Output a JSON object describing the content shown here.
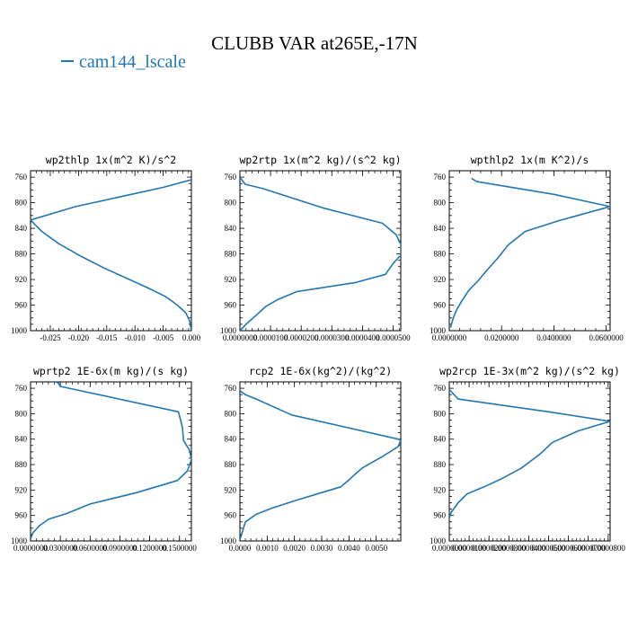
{
  "title": "CLUBB VAR at265E,-17N",
  "legend": {
    "label": "cam144_lscale",
    "color": "#1f77b4"
  },
  "line_color": "#1f77b4",
  "chart_data": [
    {
      "type": "line",
      "title": "wp2thlp  1x(m^2 K)/s^2",
      "xlim": [
        -0.0285,
        0.0
      ],
      "ylim": [
        1000,
        750
      ],
      "xticks": [
        "-0.025",
        "-0.020",
        "-0.015",
        "-0.010",
        "-0.005",
        "0.000"
      ],
      "xtick_values": [
        -0.025,
        -0.02,
        -0.015,
        -0.01,
        -0.005,
        0.0
      ],
      "yticks": [
        "760",
        "800",
        "840",
        "880",
        "920",
        "960",
        "1000"
      ],
      "ytick_values": [
        760,
        800,
        840,
        880,
        920,
        960,
        1000
      ],
      "x": [
        0.0,
        -0.005,
        -0.0205,
        -0.0285,
        -0.0265,
        -0.0235,
        -0.0195,
        -0.0155,
        -0.011,
        -0.0075,
        -0.0045,
        -0.0025,
        -0.001,
        -0.0003,
        0.0
      ],
      "y": [
        764,
        776,
        806,
        827,
        845,
        864,
        884,
        902,
        920,
        934,
        947,
        960,
        972,
        985,
        1000
      ]
    },
    {
      "type": "line",
      "title": "wp2rtp  1x(m^2 kg)/(s^2 kg)",
      "xlim": [
        0.0,
        5.25e-05
      ],
      "ylim": [
        1000,
        750
      ],
      "xticks": [
        "0.0000000",
        "0.0000100",
        "0.0000200",
        "0.0000300",
        "0.0000400",
        "0.0000500"
      ],
      "xtick_values": [
        0.0,
        1e-05,
        2e-05,
        3e-05,
        4e-05,
        5e-05
      ],
      "yticks": [
        "760",
        "800",
        "840",
        "880",
        "920",
        "960",
        "1000"
      ],
      "ytick_values": [
        760,
        800,
        840,
        880,
        920,
        960,
        1000
      ],
      "x": [
        3e-07,
        1.7e-06,
        7.5e-06,
        2.7e-05,
        4.65e-05,
        5.1e-05,
        5.25e-05,
        5.25e-05,
        5e-05,
        4.75e-05,
        3.75e-05,
        1.85e-05,
        1.25e-05,
        8.5e-06,
        5.5e-06,
        2e-06,
        0.0
      ],
      "y": [
        762,
        771,
        778,
        808,
        832,
        850,
        865,
        882,
        895,
        912,
        925,
        939,
        951,
        962,
        975,
        990,
        1000
      ]
    },
    {
      "type": "line",
      "title": "wpthlp2  1x(m K^2)/s",
      "xlim": [
        0.0,
        0.0615
      ],
      "ylim": [
        1000,
        750
      ],
      "xticks": [
        "0.0000000",
        "0.0200000",
        "0.0400000",
        "0.0600000"
      ],
      "xtick_values": [
        0.0,
        0.02,
        0.04,
        0.06
      ],
      "yticks": [
        "760",
        "800",
        "840",
        "880",
        "920",
        "960",
        "1000"
      ],
      "ytick_values": [
        760,
        800,
        840,
        880,
        920,
        960,
        1000
      ],
      "x": [
        0.0085,
        0.0105,
        0.04,
        0.0615,
        0.042,
        0.029,
        0.0225,
        0.0185,
        0.0145,
        0.011,
        0.0075,
        0.005,
        0.003,
        0.0015,
        0.0005
      ],
      "y": [
        762,
        767,
        787,
        806,
        828,
        845,
        866,
        887,
        905,
        922,
        937,
        952,
        966,
        980,
        995
      ]
    },
    {
      "type": "line",
      "title": "wprtp2  1E-6x(m kg)/(s kg)",
      "xlim": [
        0.0,
        0.162
      ],
      "ylim": [
        1000,
        750
      ],
      "xticks": [
        "0.0000000",
        "0.0300000",
        "0.0600000",
        "0.0900000",
        "0.1200000",
        "0.1500000"
      ],
      "xtick_values": [
        0.0,
        0.03,
        0.06,
        0.09,
        0.12,
        0.15
      ],
      "yticks": [
        "760",
        "800",
        "840",
        "880",
        "920",
        "960",
        "1000"
      ],
      "ytick_values": [
        760,
        800,
        840,
        880,
        920,
        960,
        1000
      ],
      "x": [
        0.022,
        0.028,
        0.03,
        0.149,
        0.153,
        0.154,
        0.16,
        0.162,
        0.158,
        0.148,
        0.107,
        0.06,
        0.036,
        0.018,
        0.009,
        0.002,
        0.0
      ],
      "y": [
        747,
        752,
        757,
        797,
        822,
        842,
        857,
        872,
        890,
        905,
        924,
        942,
        957,
        966,
        976,
        988,
        997
      ]
    },
    {
      "type": "line",
      "title": "rcp2  1E-6x(kg^2)/(kg^2)",
      "xlim": [
        0.0,
        0.0059
      ],
      "ylim": [
        1000,
        750
      ],
      "xticks": [
        "0.0000",
        "0.0010",
        "0.0020",
        "0.0030",
        "0.0040",
        "0.0050"
      ],
      "xtick_values": [
        0.0,
        0.001,
        0.002,
        0.003,
        0.004,
        0.005
      ],
      "yticks": [
        "760",
        "800",
        "840",
        "880",
        "920",
        "960",
        "1000"
      ],
      "ytick_values": [
        760,
        800,
        840,
        880,
        920,
        960,
        1000
      ],
      "x": [
        0.0,
        0.0002,
        0.0006,
        0.0019,
        0.0058,
        0.0059,
        0.0058,
        0.0052,
        0.0045,
        0.0042,
        0.004,
        0.0037,
        0.003,
        0.002,
        0.0012,
        0.0006,
        0.0002,
        0.0
      ],
      "y": [
        764,
        770,
        777,
        802,
        840,
        842,
        852,
        868,
        885,
        896,
        904,
        915,
        924,
        937,
        948,
        958,
        970,
        998
      ]
    },
    {
      "type": "line",
      "title": "wp2rcp  1E-3x(m^2 kg)/(s^2 kg)",
      "xlim": [
        0.0,
        8.1e-05
      ],
      "ylim": [
        1000,
        750
      ],
      "xticks": [
        "0.0000000",
        "0.0000100",
        "0.0000200",
        "0.0000300",
        "0.0000400",
        "0.0000500",
        "0.0000600",
        "0.0000700",
        "0.0000800"
      ],
      "xtick_values": [
        0.0,
        1e-05,
        2e-05,
        3e-05,
        4e-05,
        5e-05,
        6e-05,
        7e-05,
        8e-05
      ],
      "yticks": [
        "760",
        "800",
        "840",
        "880",
        "920",
        "960",
        "1000"
      ],
      "ytick_values": [
        760,
        800,
        840,
        880,
        920,
        960,
        1000
      ],
      "x": [
        0.0,
        4.5e-06,
        5e-05,
        8.1e-05,
        6.5e-05,
        5.2e-05,
        4.55e-05,
        3.95e-05,
        3.6e-05,
        2.65e-05,
        1.75e-05,
        9e-06,
        4.5e-06,
        1e-06,
        0.0
      ],
      "y": [
        762,
        777,
        797,
        812,
        827,
        845,
        864,
        878,
        886,
        902,
        915,
        926,
        940,
        955,
        964
      ]
    }
  ]
}
